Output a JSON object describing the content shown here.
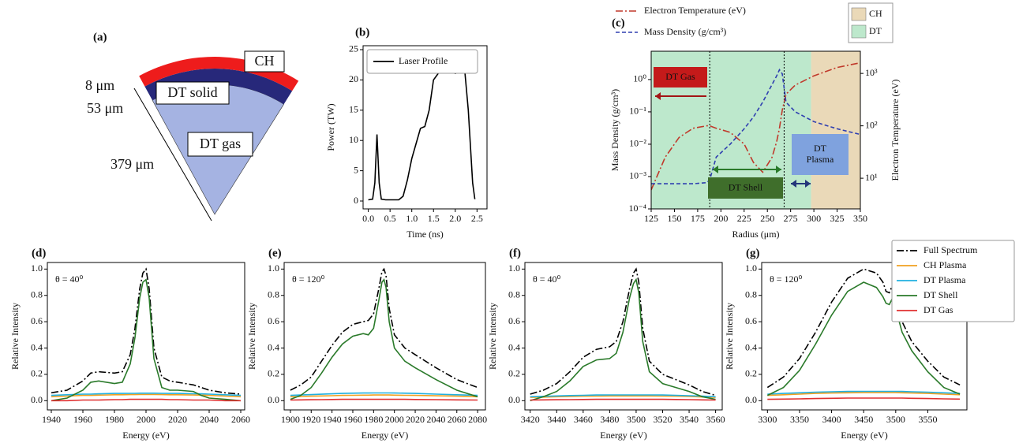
{
  "diagram": {
    "label": "(a)",
    "layers": [
      "CH",
      "DT solid",
      "DT gas"
    ],
    "dimensions": [
      "8 μm",
      "53 μm",
      "379 μm"
    ]
  },
  "chart_data": [
    {
      "type": "line",
      "title": "(b)",
      "xlabel": "Time (ns)",
      "ylabel": "Power (TW)",
      "legend": "upper left",
      "x": [
        0,
        0.1,
        0.15,
        0.2,
        0.25,
        0.3,
        0.4,
        0.5,
        0.7,
        0.8,
        0.9,
        1.0,
        1.1,
        1.2,
        1.3,
        1.4,
        1.5,
        1.6,
        1.7,
        1.8,
        1.9,
        2.0,
        2.1,
        2.2,
        2.3,
        2.4,
        2.45
      ],
      "series": [
        {
          "name": "Laser Profile",
          "color": "#000000",
          "dash": "solid",
          "values": [
            0.2,
            0.3,
            3,
            11,
            3,
            0.3,
            0.2,
            0.2,
            0.2,
            0.8,
            3.5,
            7,
            9.5,
            12,
            12.3,
            15,
            20,
            21,
            23,
            24.5,
            24,
            21,
            24,
            23,
            15,
            3,
            0.3
          ]
        }
      ],
      "xlim": [
        -0.12,
        2.73
      ],
      "ylim": [
        -1.3,
        25.65
      ],
      "xticks": [
        {
          "value": 0,
          "label": "0.0"
        },
        0.5,
        {
          "value": 1,
          "label": "1.0"
        },
        1.5,
        {
          "value": 2,
          "label": "2.0"
        },
        2.5
      ],
      "yticks": [
        0,
        5,
        10,
        15,
        20,
        25
      ]
    },
    {
      "type": "line",
      "title": "(c)",
      "xlabel": "Radius (μm)",
      "ylabel": "Mass Density (g/cm³)",
      "y2label": "Electron Temperature (eV)",
      "legend": "above",
      "x": [
        125,
        140,
        155,
        170,
        185,
        188,
        195,
        210,
        225,
        235,
        245,
        255,
        260,
        263,
        266,
        270,
        280,
        300,
        325,
        350
      ],
      "series": [
        {
          "name": "Electron Temperature (eV)",
          "color": "#c0392b",
          "dash": "dashdot",
          "axis": "y2",
          "values": [
            6,
            25,
            60,
            90,
            100,
            100,
            90,
            75,
            45,
            20,
            13,
            25,
            50,
            90,
            200,
            400,
            600,
            900,
            1300,
            1600
          ]
        },
        {
          "name": "Mass Density (g/cm³)",
          "color": "#2f3fb0",
          "dash": "dashed",
          "values": [
            0.0006,
            0.0006,
            0.0006,
            0.0006,
            0.00065,
            0.0008,
            0.004,
            0.01,
            0.03,
            0.07,
            0.2,
            0.7,
            1.3,
            2.0,
            1.5,
            0.2,
            0.1,
            0.05,
            0.03,
            0.02
          ]
        }
      ],
      "regions": [
        {
          "name": "CH",
          "color": "#ead9b8",
          "range": [
            297,
            350
          ]
        },
        {
          "name": "DT",
          "color": "#bde8cc",
          "range": [
            125,
            297
          ]
        }
      ],
      "boundaries": [
        188,
        268
      ],
      "annotations": [
        "DT Gas",
        "DT Shell",
        "DT Plasma"
      ],
      "xlim": [
        125,
        350
      ],
      "ylog": true,
      "ylim": [
        0.0001,
        7.5
      ],
      "y2log": true,
      "y2lim": [
        2.6,
        2650
      ],
      "xticks": [
        125,
        150,
        175,
        200,
        225,
        250,
        275,
        300,
        325,
        350
      ],
      "yticks": [
        {
          "value": 0.0001,
          "label": "10⁻⁴"
        },
        {
          "value": 0.001,
          "label": "10⁻³"
        },
        {
          "value": 0.01,
          "label": "10⁻²"
        },
        {
          "value": 0.1,
          "label": "10⁻¹"
        },
        {
          "value": 1,
          "label": "10⁰"
        }
      ],
      "y2ticks": [
        {
          "value": 10,
          "label": "10¹"
        },
        {
          "value": 100,
          "label": "10²"
        },
        {
          "value": 1000,
          "label": "10³"
        }
      ]
    },
    {
      "type": "line",
      "title": "(d)",
      "annotation": "θ = 40⁰",
      "xlabel": "Energy (eV)",
      "ylabel": "Relative Intensity",
      "x": [
        1940,
        1950,
        1960,
        1965,
        1970,
        1980,
        1985,
        1990,
        1993,
        1996,
        1998,
        2000,
        2002,
        2005,
        2010,
        2015,
        2020,
        2030,
        2035,
        2040,
        2050,
        2060
      ],
      "series": [
        {
          "color": "#000000",
          "dash": "dashdot",
          "values": [
            0.06,
            0.08,
            0.15,
            0.21,
            0.22,
            0.21,
            0.22,
            0.35,
            0.55,
            0.85,
            0.97,
            1.0,
            0.85,
            0.4,
            0.18,
            0.15,
            0.14,
            0.12,
            0.1,
            0.08,
            0.06,
            0.05
          ]
        },
        {
          "color": "#f0a020",
          "dash": "solid",
          "values": [
            0.03,
            0.035,
            0.04,
            0.04,
            0.042,
            0.045,
            0.045,
            0.046,
            0.046,
            0.047,
            0.047,
            0.047,
            0.047,
            0.047,
            0.046,
            0.045,
            0.045,
            0.043,
            0.042,
            0.04,
            0.035,
            0.03
          ]
        },
        {
          "color": "#20b0e0",
          "dash": "solid",
          "values": [
            0.04,
            0.045,
            0.05,
            0.05,
            0.052,
            0.055,
            0.055,
            0.056,
            0.056,
            0.057,
            0.057,
            0.057,
            0.057,
            0.057,
            0.056,
            0.055,
            0.055,
            0.053,
            0.052,
            0.05,
            0.045,
            0.04
          ]
        },
        {
          "color": "#2a7a2a",
          "dash": "solid",
          "values": [
            0.0,
            0.02,
            0.08,
            0.14,
            0.15,
            0.13,
            0.14,
            0.28,
            0.48,
            0.78,
            0.9,
            0.92,
            0.78,
            0.32,
            0.1,
            0.08,
            0.08,
            0.07,
            0.04,
            0.02,
            0.01,
            0.0
          ]
        },
        {
          "color": "#e03030",
          "dash": "solid",
          "values": [
            0,
            0,
            0.005,
            0.005,
            0.005,
            0.008,
            0.008,
            0.01,
            0.01,
            0.01,
            0.01,
            0.01,
            0.01,
            0.01,
            0.01,
            0.008,
            0.008,
            0.005,
            0.005,
            0.005,
            0,
            0
          ]
        }
      ],
      "xlim": [
        1937.5,
        2062.5
      ],
      "ylim": [
        -0.07,
        1.05
      ],
      "xticks": [
        1940,
        1960,
        1980,
        2000,
        2020,
        2040,
        2060
      ],
      "yticks": [
        {
          "value": 0,
          "label": "0.0"
        },
        0.2,
        0.4,
        0.6,
        0.8,
        {
          "value": 1,
          "label": "1.0"
        }
      ]
    },
    {
      "type": "line",
      "title": "(e)",
      "annotation": "θ = 120⁰",
      "xlabel": "Energy (eV)",
      "ylabel": "Relative Intensity",
      "x": [
        1900,
        1910,
        1920,
        1930,
        1940,
        1950,
        1960,
        1970,
        1975,
        1980,
        1985,
        1988,
        1990,
        1992,
        1995,
        2000,
        2010,
        2020,
        2040,
        2060,
        2080
      ],
      "series": [
        {
          "color": "#000000",
          "dash": "dashdot",
          "values": [
            0.08,
            0.12,
            0.18,
            0.3,
            0.42,
            0.52,
            0.58,
            0.6,
            0.61,
            0.66,
            0.85,
            0.98,
            1.0,
            0.95,
            0.7,
            0.5,
            0.4,
            0.35,
            0.25,
            0.16,
            0.1
          ]
        },
        {
          "color": "#f0a020",
          "dash": "solid",
          "values": [
            0.03,
            0.032,
            0.034,
            0.036,
            0.038,
            0.04,
            0.041,
            0.042,
            0.042,
            0.043,
            0.043,
            0.043,
            0.043,
            0.043,
            0.043,
            0.042,
            0.041,
            0.04,
            0.037,
            0.034,
            0.03
          ]
        },
        {
          "color": "#20b0e0",
          "dash": "solid",
          "values": [
            0.04,
            0.043,
            0.046,
            0.049,
            0.052,
            0.055,
            0.057,
            0.058,
            0.058,
            0.059,
            0.059,
            0.059,
            0.059,
            0.059,
            0.059,
            0.058,
            0.057,
            0.055,
            0.05,
            0.045,
            0.04
          ]
        },
        {
          "color": "#2a7a2a",
          "dash": "solid",
          "values": [
            0.01,
            0.04,
            0.1,
            0.21,
            0.33,
            0.43,
            0.49,
            0.51,
            0.5,
            0.55,
            0.76,
            0.9,
            0.92,
            0.86,
            0.6,
            0.4,
            0.3,
            0.25,
            0.16,
            0.08,
            0.03
          ]
        },
        {
          "color": "#e03030",
          "dash": "solid",
          "values": [
            0.005,
            0.006,
            0.007,
            0.008,
            0.009,
            0.01,
            0.01,
            0.01,
            0.01,
            0.01,
            0.01,
            0.01,
            0.01,
            0.01,
            0.01,
            0.01,
            0.01,
            0.009,
            0.008,
            0.006,
            0.005
          ]
        }
      ],
      "xlim": [
        1894,
        2087.5
      ],
      "ylim": [
        -0.07,
        1.05
      ],
      "xticks": [
        1900,
        1920,
        1940,
        1960,
        1980,
        2000,
        2020,
        2040,
        2060,
        2080
      ],
      "yticks": [
        {
          "value": 0,
          "label": "0.0"
        },
        0.2,
        0.4,
        0.6,
        0.8,
        {
          "value": 1,
          "label": "1.0"
        }
      ]
    },
    {
      "type": "line",
      "title": "(f)",
      "annotation": "θ = 40⁰",
      "xlabel": "Energy (eV)",
      "ylabel": "Relative Intensity",
      "x": [
        3420,
        3430,
        3440,
        3450,
        3460,
        3470,
        3480,
        3485,
        3490,
        3495,
        3498,
        3500,
        3502,
        3505,
        3510,
        3520,
        3530,
        3540,
        3550,
        3560
      ],
      "series": [
        {
          "color": "#000000",
          "dash": "dashdot",
          "values": [
            0.05,
            0.08,
            0.13,
            0.22,
            0.33,
            0.39,
            0.41,
            0.45,
            0.6,
            0.85,
            0.97,
            1.0,
            0.9,
            0.55,
            0.3,
            0.2,
            0.16,
            0.12,
            0.07,
            0.04
          ]
        },
        {
          "color": "#f0a020",
          "dash": "solid",
          "values": [
            0.025,
            0.027,
            0.03,
            0.032,
            0.034,
            0.035,
            0.036,
            0.036,
            0.036,
            0.036,
            0.036,
            0.036,
            0.036,
            0.036,
            0.036,
            0.035,
            0.034,
            0.032,
            0.028,
            0.025
          ]
        },
        {
          "color": "#20b0e0",
          "dash": "solid",
          "values": [
            0.03,
            0.033,
            0.036,
            0.039,
            0.041,
            0.043,
            0.044,
            0.044,
            0.044,
            0.044,
            0.044,
            0.044,
            0.044,
            0.044,
            0.044,
            0.043,
            0.041,
            0.038,
            0.034,
            0.03
          ]
        },
        {
          "color": "#2a7a2a",
          "dash": "solid",
          "values": [
            0.0,
            0.03,
            0.07,
            0.15,
            0.26,
            0.31,
            0.32,
            0.36,
            0.52,
            0.78,
            0.89,
            0.92,
            0.82,
            0.45,
            0.22,
            0.13,
            0.1,
            0.07,
            0.03,
            0.01
          ]
        },
        {
          "color": "#e03030",
          "dash": "solid",
          "values": [
            0.005,
            0.006,
            0.007,
            0.008,
            0.009,
            0.01,
            0.01,
            0.01,
            0.01,
            0.01,
            0.01,
            0.01,
            0.01,
            0.01,
            0.01,
            0.01,
            0.009,
            0.008,
            0.006,
            0.005
          ]
        }
      ],
      "xlim": [
        3416,
        3565
      ],
      "ylim": [
        -0.07,
        1.05
      ],
      "xticks": [
        3420,
        3440,
        3460,
        3480,
        3500,
        3520,
        3540,
        3560
      ],
      "yticks": [
        {
          "value": 0,
          "label": "0.0"
        },
        0.2,
        0.4,
        0.6,
        0.8,
        {
          "value": 1,
          "label": "1.0"
        }
      ]
    },
    {
      "type": "line",
      "title": "(g)",
      "annotation": "θ = 120⁰",
      "xlabel": "Energy (eV)",
      "ylabel": "Relative Intensity",
      "legend": "upper right",
      "x": [
        3300,
        3325,
        3350,
        3375,
        3400,
        3425,
        3450,
        3470,
        3480,
        3485,
        3490,
        3495,
        3500,
        3510,
        3525,
        3550,
        3575,
        3600
      ],
      "series": [
        {
          "name": "Full Spectrum",
          "color": "#000000",
          "dash": "dashdot",
          "values": [
            0.1,
            0.18,
            0.32,
            0.52,
            0.75,
            0.93,
            1.0,
            0.97,
            0.9,
            0.83,
            0.82,
            0.88,
            0.8,
            0.6,
            0.45,
            0.3,
            0.18,
            0.12
          ]
        },
        {
          "name": "CH Plasma",
          "color": "#f0a020",
          "dash": "solid",
          "values": [
            0.04,
            0.045,
            0.05,
            0.055,
            0.058,
            0.06,
            0.061,
            0.061,
            0.061,
            0.061,
            0.061,
            0.061,
            0.061,
            0.06,
            0.058,
            0.055,
            0.05,
            0.045
          ]
        },
        {
          "name": "DT Plasma",
          "color": "#20b0e0",
          "dash": "solid",
          "values": [
            0.05,
            0.055,
            0.06,
            0.065,
            0.068,
            0.07,
            0.071,
            0.071,
            0.071,
            0.071,
            0.071,
            0.071,
            0.071,
            0.07,
            0.068,
            0.065,
            0.06,
            0.055
          ]
        },
        {
          "name": "DT Shell",
          "color": "#2a7a2a",
          "dash": "solid",
          "values": [
            0.04,
            0.1,
            0.23,
            0.43,
            0.65,
            0.83,
            0.9,
            0.86,
            0.79,
            0.74,
            0.73,
            0.78,
            0.7,
            0.52,
            0.38,
            0.22,
            0.1,
            0.05
          ]
        },
        {
          "name": "DT Gas",
          "color": "#e03030",
          "dash": "solid",
          "values": [
            0.01,
            0.012,
            0.014,
            0.016,
            0.018,
            0.02,
            0.02,
            0.02,
            0.02,
            0.02,
            0.02,
            0.02,
            0.02,
            0.02,
            0.018,
            0.016,
            0.014,
            0.012
          ]
        }
      ],
      "xlim": [
        3291,
        3611
      ],
      "ylim": [
        -0.07,
        1.05
      ],
      "xticks": [
        3300,
        3350,
        3400,
        3450,
        3500,
        3550
      ],
      "yticks": [
        {
          "value": 0,
          "label": "0.0"
        },
        0.2,
        0.4,
        0.6,
        0.8,
        {
          "value": 1,
          "label": "1.0"
        }
      ]
    }
  ]
}
